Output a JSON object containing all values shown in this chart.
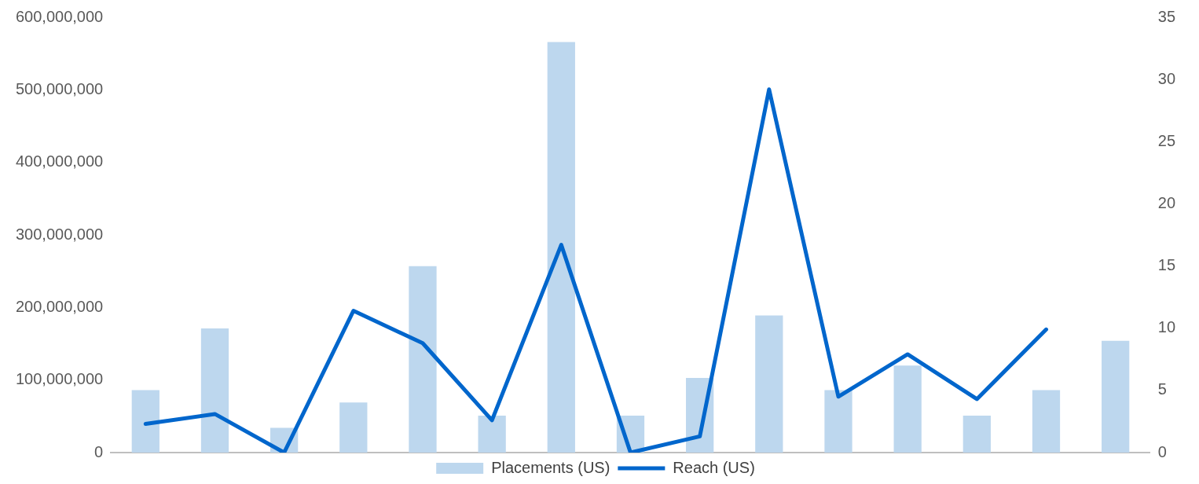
{
  "chart_data": {
    "type": "bar",
    "categories": [
      null,
      null,
      null,
      null,
      null,
      null,
      null,
      null,
      null,
      null,
      null,
      null,
      null,
      null,
      null
    ],
    "series": [
      {
        "name": "Placements (US)",
        "color": "#bdd7ee",
        "values": [
          86000000,
          171000000,
          34000000,
          69000000,
          257000000,
          51000000,
          566000000,
          51000000,
          103000000,
          189000000,
          86000000,
          120000000,
          51000000,
          86000000,
          154000000
        ]
      },
      {
        "name": "Reach (US)",
        "type": "line",
        "axis": "y2",
        "color": "#0066cc",
        "values": [
          2.3,
          3.1,
          0,
          11.4,
          8.8,
          2.6,
          16.7,
          0,
          1.3,
          29.2,
          4.5,
          7.9,
          4.3,
          9.9,
          null
        ]
      }
    ],
    "ylim": [
      0,
      600000000
    ],
    "yticks": [
      {
        "value": 0,
        "label": "0"
      },
      {
        "value": 100000000,
        "label": "100,000,000"
      },
      {
        "value": 200000000,
        "label": "200,000,000"
      },
      {
        "value": 300000000,
        "label": "300,000,000"
      },
      {
        "value": 400000000,
        "label": "400,000,000"
      },
      {
        "value": 500000000,
        "label": "500,000,000"
      },
      {
        "value": 600000000,
        "label": "600,000,000"
      }
    ],
    "y2lim": [
      0,
      35
    ],
    "y2ticks": [
      0,
      5,
      10,
      15,
      20,
      25,
      30,
      35
    ],
    "grid": false,
    "legend": "bottom",
    "marker": "none",
    "line_style": "solid"
  }
}
